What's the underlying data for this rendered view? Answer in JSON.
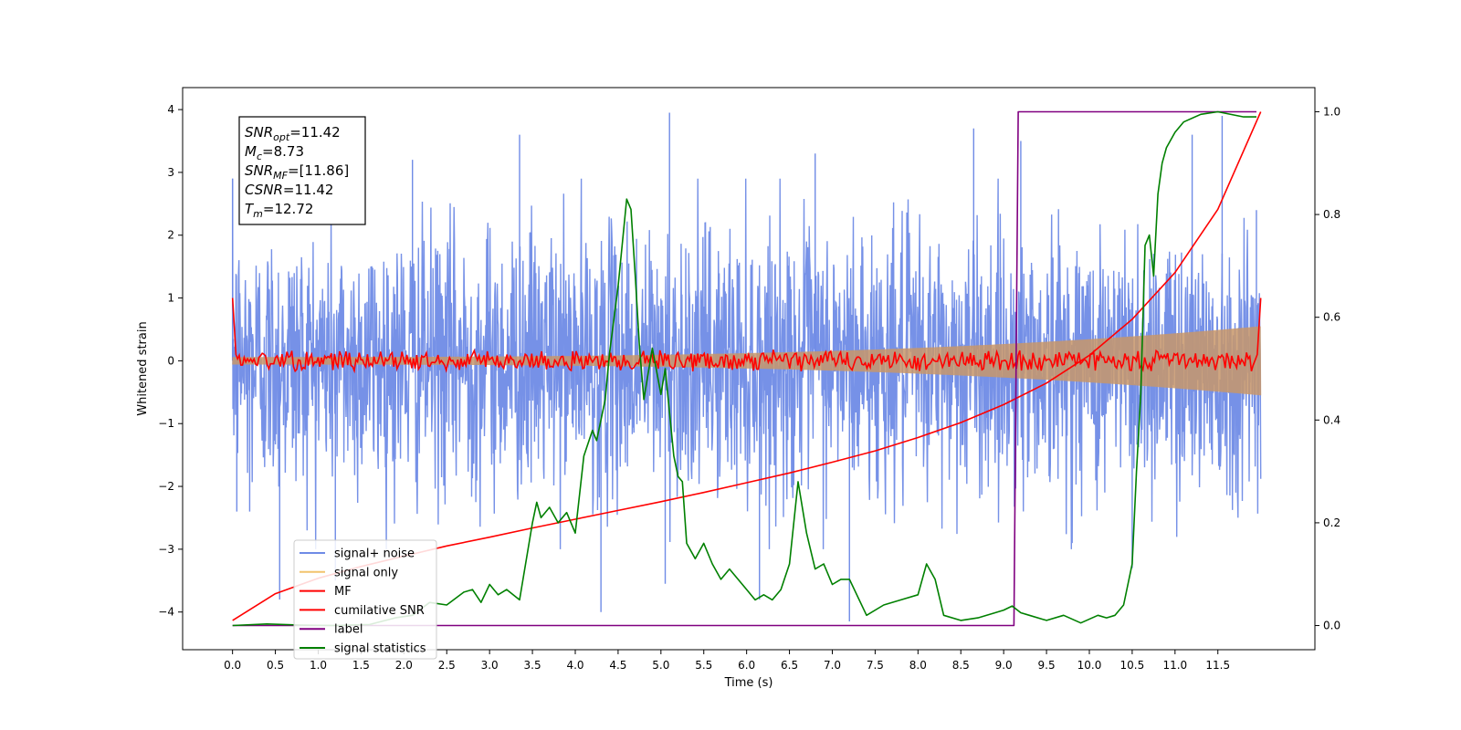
{
  "chart_data": {
    "type": "line",
    "xlabel": "Time (s)",
    "ylabel": "Whitened strain",
    "xlim": [
      -0.5825,
      12.6325
    ],
    "ylim": [
      -4.6,
      4.35
    ],
    "y2lim": [
      -0.047,
      1.047
    ],
    "x_ticks": [
      0.0,
      0.5,
      1.0,
      1.5,
      2.0,
      2.5,
      3.0,
      3.5,
      4.0,
      4.5,
      5.0,
      5.5,
      6.0,
      6.5,
      7.0,
      7.5,
      8.0,
      8.5,
      9.0,
      9.5,
      10.0,
      10.5,
      11.0,
      11.5
    ],
    "x_tick_labels": [
      "0.0",
      "0.5",
      "1.0",
      "1.5",
      "2.0",
      "2.5",
      "3.0",
      "3.5",
      "4.0",
      "4.5",
      "5.0",
      "5.5",
      "6.0",
      "6.5",
      "7.0",
      "7.5",
      "8.0",
      "8.5",
      "9.0",
      "9.5",
      "10.0",
      "10.5",
      "11.0",
      "11.5"
    ],
    "y_ticks": [
      4,
      3,
      2,
      1,
      0,
      -1,
      -2,
      -3,
      -4
    ],
    "y_tick_labels": [
      "4",
      "3",
      "2",
      "1",
      "0",
      "−1",
      "−2",
      "−3",
      "−4"
    ],
    "y2_ticks": [
      1.0,
      0.8,
      0.6,
      0.4,
      0.2,
      0.0
    ],
    "y2_tick_labels": [
      "1.0",
      "0.8",
      "0.6",
      "0.4",
      "0.2",
      "0.0"
    ],
    "grid": false,
    "legend_position": "lower-left",
    "series": [
      {
        "name": "signal+ noise",
        "color": "#6f8be6",
        "axis": "left",
        "style": "noise",
        "x_range": [
          0.0,
          12.0
        ],
        "band": [
          -2.3,
          2.2
        ],
        "spikes": [
          {
            "x": 0.0,
            "y": 2.9
          },
          {
            "x": 0.05,
            "y": -2.4
          },
          {
            "x": 0.2,
            "y": -2.4
          },
          {
            "x": 0.55,
            "y": -3.8
          },
          {
            "x": 1.2,
            "y": -3.5
          },
          {
            "x": 2.1,
            "y": 3.2
          },
          {
            "x": 3.35,
            "y": 3.6
          },
          {
            "x": 4.3,
            "y": -4.0
          },
          {
            "x": 5.05,
            "y": -3.55
          },
          {
            "x": 5.1,
            "y": 3.95
          },
          {
            "x": 6.15,
            "y": -3.8
          },
          {
            "x": 6.8,
            "y": 3.3
          },
          {
            "x": 7.2,
            "y": -4.15
          },
          {
            "x": 8.65,
            "y": 3.7
          },
          {
            "x": 9.2,
            "y": 3.5
          },
          {
            "x": 10.5,
            "y": -3.3
          },
          {
            "x": 11.2,
            "y": 3.6
          },
          {
            "x": 11.55,
            "y": 3.9
          },
          {
            "x": 11.95,
            "y": 2.4
          }
        ]
      },
      {
        "name": "signal only",
        "color": "#f2c46d",
        "axis": "left",
        "style": "chirp",
        "x_range": [
          0.0,
          12.0
        ],
        "amplitude_start": 0.06,
        "amplitude_end": 0.55
      },
      {
        "name": "MF",
        "color": "#ff0000",
        "axis": "left",
        "style": "fluctuation",
        "x_range": [
          0.0,
          12.0
        ],
        "start_y": 1.0,
        "end_y": 1.0,
        "band": [
          -0.13,
          0.22
        ]
      },
      {
        "name": "cumilative SNR",
        "color": "#ff0000",
        "axis": "right",
        "x": [
          0.0,
          0.5,
          1.0,
          1.5,
          2.0,
          2.5,
          3.0,
          3.5,
          4.0,
          4.5,
          5.0,
          5.5,
          6.0,
          6.5,
          7.0,
          7.5,
          8.0,
          8.5,
          9.0,
          9.5,
          10.0,
          10.5,
          11.0,
          11.5,
          12.0
        ],
        "y": [
          0.01,
          0.062,
          0.092,
          0.115,
          0.135,
          0.155,
          0.172,
          0.19,
          0.207,
          0.224,
          0.241,
          0.259,
          0.278,
          0.297,
          0.318,
          0.34,
          0.366,
          0.395,
          0.43,
          0.472,
          0.526,
          0.596,
          0.687,
          0.81,
          1.0
        ]
      },
      {
        "name": "label",
        "color": "#800080",
        "axis": "right",
        "x": [
          0.0,
          9.12,
          9.17,
          11.95
        ],
        "y": [
          0.0,
          0.0,
          1.0,
          1.0
        ]
      },
      {
        "name": "signal statistics",
        "color": "#008000",
        "axis": "right",
        "x": [
          0.0,
          0.4,
          0.8,
          1.2,
          1.6,
          1.9,
          2.1,
          2.3,
          2.5,
          2.7,
          2.8,
          2.9,
          3.0,
          3.1,
          3.2,
          3.35,
          3.45,
          3.5,
          3.55,
          3.6,
          3.7,
          3.8,
          3.9,
          4.0,
          4.1,
          4.2,
          4.25,
          4.35,
          4.4,
          4.5,
          4.6,
          4.65,
          4.7,
          4.75,
          4.8,
          4.9,
          5.0,
          5.05,
          5.15,
          5.2,
          5.25,
          5.3,
          5.4,
          5.5,
          5.6,
          5.7,
          5.8,
          5.9,
          6.0,
          6.1,
          6.2,
          6.3,
          6.4,
          6.5,
          6.6,
          6.7,
          6.8,
          6.9,
          7.0,
          7.1,
          7.2,
          7.4,
          7.6,
          7.8,
          8.0,
          8.1,
          8.2,
          8.3,
          8.5,
          8.7,
          8.9,
          9.0,
          9.1,
          9.2,
          9.3,
          9.5,
          9.7,
          9.9,
          10.1,
          10.2,
          10.3,
          10.4,
          10.45,
          10.5,
          10.55,
          10.6,
          10.65,
          10.7,
          10.75,
          10.8,
          10.85,
          10.9,
          11.0,
          11.1,
          11.3,
          11.5,
          11.8,
          11.95
        ],
        "y": [
          0.0,
          0.003,
          0.001,
          0.0,
          0.002,
          0.015,
          0.02,
          0.045,
          0.04,
          0.065,
          0.07,
          0.045,
          0.08,
          0.06,
          0.07,
          0.05,
          0.15,
          0.2,
          0.24,
          0.21,
          0.23,
          0.2,
          0.22,
          0.18,
          0.33,
          0.38,
          0.36,
          0.44,
          0.53,
          0.66,
          0.83,
          0.81,
          0.68,
          0.54,
          0.44,
          0.54,
          0.45,
          0.5,
          0.33,
          0.29,
          0.28,
          0.16,
          0.13,
          0.16,
          0.12,
          0.09,
          0.11,
          0.09,
          0.07,
          0.05,
          0.06,
          0.05,
          0.07,
          0.12,
          0.28,
          0.18,
          0.11,
          0.12,
          0.08,
          0.09,
          0.09,
          0.02,
          0.04,
          0.05,
          0.06,
          0.12,
          0.09,
          0.02,
          0.01,
          0.015,
          0.025,
          0.03,
          0.038,
          0.025,
          0.02,
          0.01,
          0.02,
          0.005,
          0.02,
          0.015,
          0.02,
          0.04,
          0.08,
          0.12,
          0.3,
          0.45,
          0.74,
          0.76,
          0.68,
          0.84,
          0.9,
          0.93,
          0.96,
          0.98,
          0.995,
          1.0,
          0.99,
          0.99
        ]
      }
    ],
    "annotation": [
      {
        "main": "SNR",
        "sub": "opt",
        "value": "=11.42"
      },
      {
        "main": "M",
        "sub": "c",
        "value": "=8.73"
      },
      {
        "main": "SNR",
        "sub": "MF",
        "value": "=[11.86]"
      },
      {
        "main": "CSNR",
        "sub": "",
        "value": "=11.42"
      },
      {
        "main": "T",
        "sub": "m",
        "value": "=12.72"
      }
    ]
  }
}
